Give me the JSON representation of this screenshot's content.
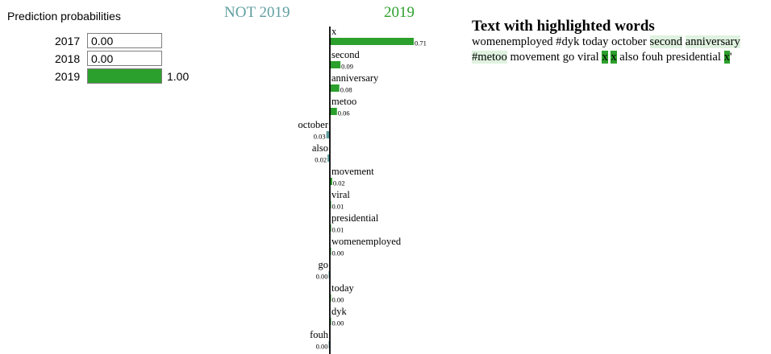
{
  "proba": {
    "title": "Prediction probabilities",
    "classes": [
      {
        "label": "2017",
        "value": 0.0,
        "text": "0.00"
      },
      {
        "label": "2018",
        "value": 0.0,
        "text": "0.00"
      },
      {
        "label": "2019",
        "value": 1.0,
        "text": "1.00"
      }
    ],
    "fill_color": "#2ca02c"
  },
  "chart_data": {
    "type": "bar",
    "orientation": "horizontal",
    "title": "",
    "negative_label": "NOT 2019",
    "positive_label": "2019",
    "negative_color": "#5f9ea0",
    "positive_color": "#2ca02c",
    "categories": [
      "x",
      "second",
      "anniversary",
      "metoo",
      "october",
      "also",
      "movement",
      "viral",
      "presidential",
      "womenemployed",
      "go",
      "today",
      "dyk",
      "fouh"
    ],
    "values": [
      0.71,
      0.09,
      0.08,
      0.06,
      -0.03,
      -0.02,
      0.02,
      0.01,
      0.01,
      0.0,
      -0.0001,
      0.0,
      0.0,
      -0.0001
    ],
    "value_labels": [
      "0.71",
      "0.09",
      "0.08",
      "0.06",
      "0.03",
      "0.02",
      "0.02",
      "0.01",
      "0.01",
      "0.00",
      "0.00",
      "0.00",
      "0.00",
      "0.00"
    ],
    "xlim": [
      -0.71,
      0.71
    ],
    "grid": false
  },
  "highlight": {
    "title": "Text with highlighted words",
    "lines": [
      [
        {
          "t": "womenemployed",
          "h": "none"
        },
        {
          "t": " ",
          "h": "none"
        },
        {
          "t": "#dyk",
          "h": "none"
        },
        {
          "t": " ",
          "h": "none"
        },
        {
          "t": "today",
          "h": "none"
        },
        {
          "t": " ",
          "h": "none"
        },
        {
          "t": "october",
          "h": "none"
        },
        {
          "t": " ",
          "h": "none"
        },
        {
          "t": "second",
          "h": "light"
        },
        {
          "t": " ",
          "h": "none"
        },
        {
          "t": "anniversary",
          "h": "light"
        }
      ],
      [
        {
          "t": "#metoo",
          "h": "light"
        },
        {
          "t": " ",
          "h": "none"
        },
        {
          "t": "movement",
          "h": "none"
        },
        {
          "t": " ",
          "h": "none"
        },
        {
          "t": "go",
          "h": "none"
        },
        {
          "t": " ",
          "h": "none"
        },
        {
          "t": "viral",
          "h": "none"
        },
        {
          "t": " ",
          "h": "none"
        },
        {
          "t": "x",
          "h": "dark"
        },
        {
          "t": " ",
          "h": "none"
        },
        {
          "t": "x",
          "h": "dark"
        },
        {
          "t": " ",
          "h": "none"
        },
        {
          "t": "also",
          "h": "none"
        },
        {
          "t": " ",
          "h": "none"
        },
        {
          "t": "fouh",
          "h": "none"
        },
        {
          "t": " ",
          "h": "none"
        },
        {
          "t": "presidential",
          "h": "none"
        },
        {
          "t": " ",
          "h": "none"
        },
        {
          "t": "x",
          "h": "dark"
        },
        {
          "t": "'",
          "h": "none"
        }
      ]
    ]
  }
}
